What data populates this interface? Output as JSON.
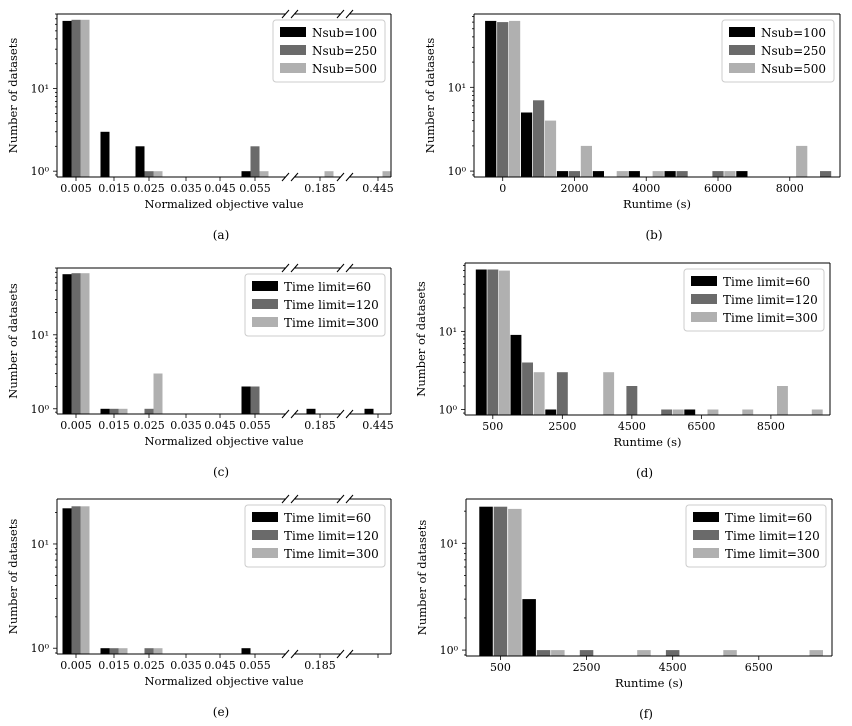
{
  "colors": {
    "c1": "#000000",
    "c2": "#6a6a6a",
    "c3": "#b0b0b0"
  },
  "chart_data": [
    {
      "panel": "(a)",
      "type": "bar",
      "axis": "log",
      "xlabel": "Normalized objective value",
      "ylabel": "Number of datasets",
      "ytick_labels": [
        "10⁰",
        "10¹"
      ],
      "categories": [
        "0.005",
        "0.015",
        "0.025",
        "0.035",
        "0.045",
        "0.055",
        "0.185",
        "0.445"
      ],
      "series": [
        {
          "name": "Nsub=100",
          "values": [
            66,
            3,
            2,
            0,
            0,
            1,
            0,
            0
          ]
        },
        {
          "name": "Nsub=250",
          "values": [
            68,
            0,
            1,
            0,
            0,
            2,
            0,
            0
          ]
        },
        {
          "name": "Nsub=500",
          "values": [
            68,
            0,
            1,
            0,
            0,
            1,
            1,
            1
          ]
        }
      ],
      "ylim": [
        0.85,
        80
      ],
      "legend": "top-right",
      "axis_breaks": true
    },
    {
      "panel": "(b)",
      "type": "bar",
      "axis": "runtime",
      "xlabel": "Runtime (s)",
      "ylabel": "Number of datasets",
      "ytick_labels": [
        "10⁰",
        "10¹"
      ],
      "xticks": [
        0,
        2000,
        4000,
        6000,
        8000
      ],
      "xtick_labels": [
        "0",
        "2000",
        "4000",
        "6000",
        "8000"
      ],
      "bin_start": -500,
      "bin_width": 1000,
      "xlim": [
        -800,
        9400
      ],
      "series": [
        {
          "name": "Nsub=100",
          "values": [
            62,
            5,
            1,
            1,
            1,
            1,
            0,
            1,
            0,
            0
          ]
        },
        {
          "name": "Nsub=250",
          "values": [
            60,
            7,
            1,
            0,
            0,
            1,
            1,
            0,
            0,
            1
          ]
        },
        {
          "name": "Nsub=500",
          "values": [
            62,
            4,
            2,
            1,
            1,
            0,
            1,
            0,
            2,
            0
          ]
        }
      ],
      "ylim": [
        0.85,
        75
      ],
      "legend": "top-right"
    },
    {
      "panel": "(c)",
      "type": "bar",
      "axis": "log",
      "xlabel": "Normalized objective value",
      "ylabel": "Number of datasets",
      "ytick_labels": [
        "10⁰",
        "10¹"
      ],
      "categories": [
        "0.005",
        "0.015",
        "0.025",
        "0.035",
        "0.045",
        "0.055",
        "0.185",
        "0.445"
      ],
      "series": [
        {
          "name": "Time limit=60",
          "values": [
            66,
            1,
            0,
            0,
            0,
            2,
            1,
            1
          ]
        },
        {
          "name": "Time limit=120",
          "values": [
            68,
            1,
            1,
            0,
            0,
            2,
            0,
            0
          ]
        },
        {
          "name": "Time limit=300",
          "values": [
            68,
            1,
            3,
            0,
            0,
            0,
            0,
            0
          ]
        }
      ],
      "ylim": [
        0.85,
        80
      ],
      "legend": "top-right",
      "axis_breaks": true
    },
    {
      "panel": "(d)",
      "type": "bar",
      "axis": "runtime",
      "xlabel": "Runtime (s)",
      "ylabel": "Number of datasets",
      "ytick_labels": [
        "10⁰",
        "10¹"
      ],
      "xticks": [
        500,
        2500,
        4500,
        6500,
        8500
      ],
      "xtick_labels": [
        "500",
        "2500",
        "4500",
        "6500",
        "8500"
      ],
      "bin_start": 0,
      "bin_width": 1000,
      "xlim": [
        -300,
        10200
      ],
      "series": [
        {
          "name": "Time limit=60",
          "values": [
            62,
            9,
            1,
            0,
            0,
            0,
            1,
            0,
            0,
            0
          ]
        },
        {
          "name": "Time limit=120",
          "values": [
            62,
            4,
            3,
            0,
            2,
            1,
            0,
            0,
            0,
            0
          ]
        },
        {
          "name": "Time limit=300",
          "values": [
            60,
            3,
            0,
            3,
            0,
            1,
            1,
            1,
            2,
            1
          ]
        }
      ],
      "ylim": [
        0.85,
        75
      ],
      "legend": "top-right"
    },
    {
      "panel": "(e)",
      "type": "bar",
      "axis": "log",
      "xlabel": "Normalized objective value",
      "ylabel": "Number of datasets",
      "ytick_labels": [
        "10⁰",
        "10¹"
      ],
      "categories": [
        "0.005",
        "0.015",
        "0.025",
        "0.035",
        "0.045",
        "0.055",
        "0.185",
        ""
      ],
      "series": [
        {
          "name": "Time limit=60",
          "values": [
            22,
            1,
            0,
            0,
            0,
            1,
            0,
            0
          ]
        },
        {
          "name": "Time limit=120",
          "values": [
            23,
            1,
            1,
            0,
            0,
            0,
            0,
            0
          ]
        },
        {
          "name": "Time limit=300",
          "values": [
            23,
            1,
            1,
            0,
            0,
            0,
            0,
            0
          ]
        }
      ],
      "ylim": [
        0.88,
        27
      ],
      "legend": "top-right",
      "axis_breaks": true
    },
    {
      "panel": "(f)",
      "type": "bar",
      "axis": "runtime",
      "xlabel": "Runtime (s)",
      "ylabel": "Number of datasets",
      "ytick_labels": [
        "10⁰",
        "10¹"
      ],
      "xticks": [
        500,
        2500,
        4500,
        6500
      ],
      "xtick_labels": [
        "500",
        "2500",
        "4500",
        "6500"
      ],
      "bin_start": 0,
      "bin_width": 1000,
      "xlim": [
        -300,
        8200
      ],
      "series": [
        {
          "name": "Time limit=60",
          "values": [
            22,
            3,
            0,
            0,
            0,
            0,
            0,
            0
          ]
        },
        {
          "name": "Time limit=120",
          "values": [
            22,
            1,
            1,
            0,
            1,
            0,
            0,
            0
          ]
        },
        {
          "name": "Time limit=300",
          "values": [
            21,
            1,
            0,
            1,
            0,
            1,
            0,
            1
          ]
        }
      ],
      "ylim": [
        0.88,
        26
      ],
      "legend": "top-right"
    }
  ]
}
